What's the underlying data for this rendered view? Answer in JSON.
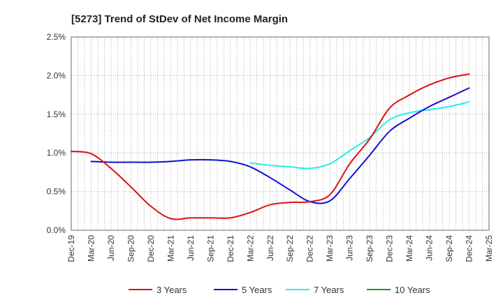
{
  "chart_data": {
    "type": "line",
    "title": "[5273]  Trend of StDev of Net Income Margin",
    "xlabel": "",
    "ylabel": "",
    "x_ticks": [
      "Dec-19",
      "Mar-20",
      "Jun-20",
      "Sep-20",
      "Dec-20",
      "Mar-21",
      "Jun-21",
      "Sep-21",
      "Dec-21",
      "Mar-22",
      "Jun-22",
      "Sep-22",
      "Dec-22",
      "Mar-23",
      "Jun-23",
      "Sep-23",
      "Dec-23",
      "Mar-24",
      "Jun-24",
      "Sep-24",
      "Dec-24",
      "Mar-25"
    ],
    "y_ticks": [
      "0.0%",
      "0.5%",
      "1.0%",
      "1.5%",
      "2.0%",
      "2.5%"
    ],
    "ylim": [
      0,
      2.5
    ],
    "grid": true,
    "legend_position": "bottom",
    "series": [
      {
        "name": "3 Years",
        "color": "#dd1111",
        "x": [
          "Dec-19",
          "Mar-20",
          "Jun-20",
          "Sep-20",
          "Dec-20",
          "Mar-21",
          "Jun-21",
          "Sep-21",
          "Dec-21",
          "Mar-22",
          "Jun-22",
          "Sep-22",
          "Dec-22",
          "Mar-23",
          "Jun-23",
          "Sep-23",
          "Dec-23",
          "Mar-24",
          "Jun-24",
          "Sep-24",
          "Dec-24"
        ],
        "values": [
          1.02,
          0.99,
          0.8,
          0.56,
          0.31,
          0.15,
          0.16,
          0.16,
          0.16,
          0.23,
          0.33,
          0.36,
          0.37,
          0.46,
          0.86,
          1.18,
          1.58,
          1.75,
          1.88,
          1.97,
          2.02
        ]
      },
      {
        "name": "5 Years",
        "color": "#1111cc",
        "x": [
          "Mar-20",
          "Jun-20",
          "Sep-20",
          "Dec-20",
          "Mar-21",
          "Jun-21",
          "Sep-21",
          "Dec-21",
          "Mar-22",
          "Jun-22",
          "Sep-22",
          "Dec-22",
          "Mar-23",
          "Jun-23",
          "Sep-23",
          "Dec-23",
          "Mar-24",
          "Jun-24",
          "Sep-24",
          "Dec-24"
        ],
        "values": [
          0.89,
          0.88,
          0.88,
          0.88,
          0.89,
          0.91,
          0.91,
          0.89,
          0.82,
          0.68,
          0.52,
          0.37,
          0.38,
          0.67,
          0.97,
          1.28,
          1.45,
          1.6,
          1.72,
          1.84
        ]
      },
      {
        "name": "7 Years",
        "color": "#22eeee",
        "x": [
          "Mar-22",
          "Jun-22",
          "Sep-22",
          "Dec-22",
          "Mar-23",
          "Jun-23",
          "Sep-23",
          "Dec-23",
          "Mar-24",
          "Jun-24",
          "Sep-24",
          "Dec-24"
        ],
        "values": [
          0.87,
          0.84,
          0.82,
          0.8,
          0.86,
          1.03,
          1.2,
          1.43,
          1.52,
          1.56,
          1.6,
          1.66
        ]
      },
      {
        "name": "10 Years",
        "color": "#229922",
        "x": [],
        "values": []
      }
    ]
  }
}
